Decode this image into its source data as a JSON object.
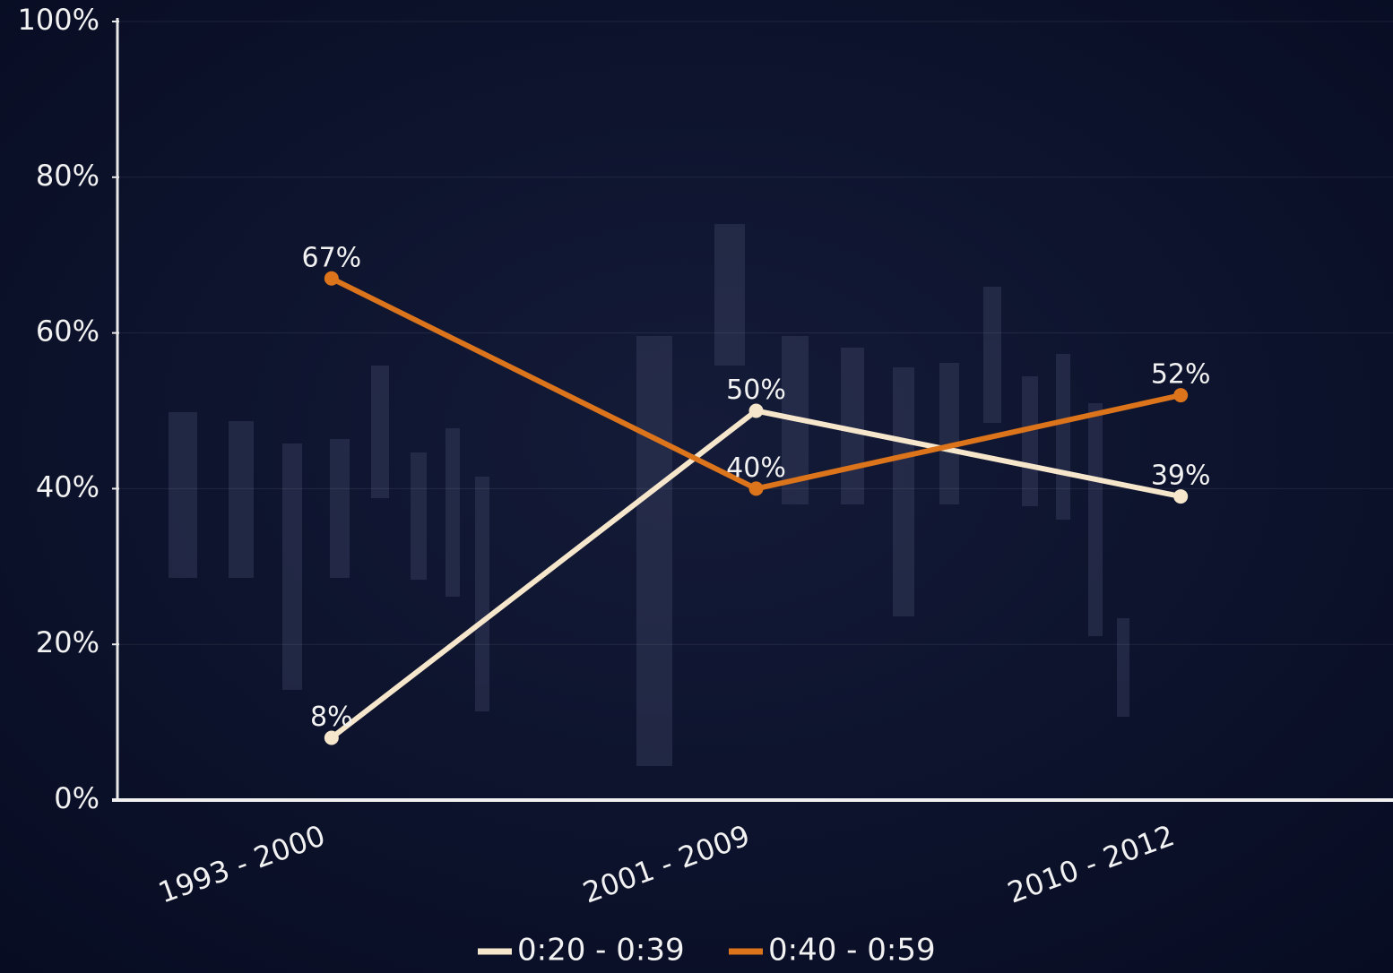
{
  "chart_data": {
    "type": "line",
    "categories": [
      "1993 - 2000",
      "2001 - 2009",
      "2010 - 2012"
    ],
    "series": [
      {
        "name": "0:20 - 0:39",
        "color": "#f6e7cc",
        "values": [
          8,
          50,
          39
        ],
        "value_labels": [
          "8%",
          "50%",
          "39%"
        ]
      },
      {
        "name": "0:40 - 0:59",
        "color": "#dc741c",
        "values": [
          67,
          40,
          52
        ],
        "value_labels": [
          "67%",
          "40%",
          "52%"
        ]
      }
    ],
    "ylim": [
      0,
      100
    ],
    "yticks": [
      {
        "value": 0,
        "label": "0%"
      },
      {
        "value": 20,
        "label": "20%"
      },
      {
        "value": 40,
        "label": "40%"
      },
      {
        "value": 60,
        "label": "60%"
      },
      {
        "value": 80,
        "label": "80%"
      },
      {
        "value": 100,
        "label": "100%"
      }
    ],
    "grid": true
  }
}
